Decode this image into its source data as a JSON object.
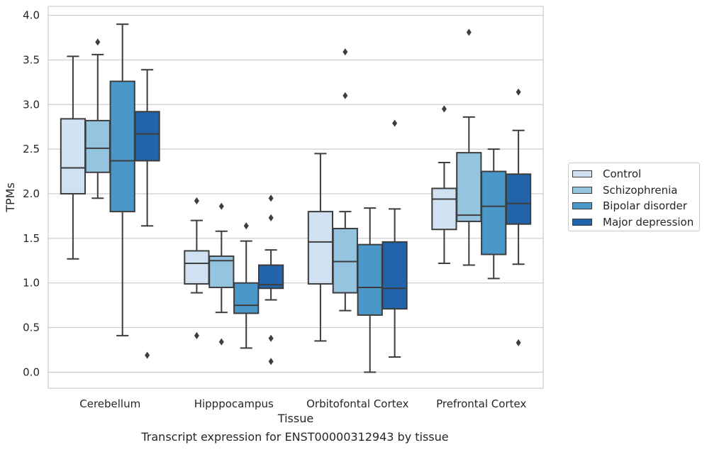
{
  "chart_data": {
    "type": "box",
    "xlabel": "Tissue",
    "ylabel": "TPMs",
    "caption": "Transcript expression for ENST00000312943 by tissue",
    "ylim": [
      -0.18,
      4.1
    ],
    "yticks": [
      0.0,
      0.5,
      1.0,
      1.5,
      2.0,
      2.5,
      3.0,
      3.5,
      4.0
    ],
    "ytick_labels": [
      "0.0",
      "0.5",
      "1.0",
      "1.5",
      "2.0",
      "2.5",
      "3.0",
      "3.5",
      "4.0"
    ],
    "grid": "horizontal",
    "legend_position": "right",
    "categories": [
      "Cerebellum",
      "Hipppocampus",
      "Orbitofontal Cortex",
      "Prefrontal Cortex"
    ],
    "series": [
      {
        "name": "Control",
        "color": "#d0e1f2",
        "boxes": [
          {
            "whislo": 1.27,
            "q1": 2.0,
            "median": 2.29,
            "q3": 2.84,
            "whishi": 3.54,
            "fliers": []
          },
          {
            "whislo": 0.89,
            "q1": 0.99,
            "median": 1.22,
            "q3": 1.36,
            "whishi": 1.7,
            "fliers": [
              1.92,
              0.41
            ]
          },
          {
            "whislo": 0.35,
            "q1": 0.99,
            "median": 1.46,
            "q3": 1.8,
            "whishi": 2.45,
            "fliers": []
          },
          {
            "whislo": 1.22,
            "q1": 1.6,
            "median": 1.94,
            "q3": 2.06,
            "whishi": 2.35,
            "fliers": [
              2.95
            ]
          }
        ]
      },
      {
        "name": "Schizophrenia",
        "color": "#94c4df",
        "boxes": [
          {
            "whislo": 1.95,
            "q1": 2.24,
            "median": 2.51,
            "q3": 2.82,
            "whishi": 3.56,
            "fliers": [
              3.7
            ]
          },
          {
            "whislo": 0.67,
            "q1": 0.95,
            "median": 1.25,
            "q3": 1.3,
            "whishi": 1.58,
            "fliers": [
              1.86,
              0.34
            ]
          },
          {
            "whislo": 0.69,
            "q1": 0.89,
            "median": 1.24,
            "q3": 1.61,
            "whishi": 1.8,
            "fliers": [
              3.59,
              3.1
            ]
          },
          {
            "whislo": 1.2,
            "q1": 1.69,
            "median": 1.76,
            "q3": 2.46,
            "whishi": 2.86,
            "fliers": [
              3.81
            ]
          }
        ]
      },
      {
        "name": "Bipolar disorder",
        "color": "#4a98c9",
        "boxes": [
          {
            "whislo": 0.41,
            "q1": 1.8,
            "median": 2.37,
            "q3": 3.26,
            "whishi": 3.9,
            "fliers": []
          },
          {
            "whislo": 0.27,
            "q1": 0.66,
            "median": 0.75,
            "q3": 1.0,
            "whishi": 1.47,
            "fliers": [
              1.64
            ]
          },
          {
            "whislo": 0.0,
            "q1": 0.64,
            "median": 0.95,
            "q3": 1.43,
            "whishi": 1.84,
            "fliers": []
          },
          {
            "whislo": 1.05,
            "q1": 1.32,
            "median": 1.86,
            "q3": 2.25,
            "whishi": 2.5,
            "fliers": []
          }
        ]
      },
      {
        "name": "Major depression",
        "color": "#2164ab",
        "boxes": [
          {
            "whislo": 1.64,
            "q1": 2.37,
            "median": 2.67,
            "q3": 2.92,
            "whishi": 3.39,
            "fliers": [
              0.19
            ]
          },
          {
            "whislo": 0.81,
            "q1": 0.94,
            "median": 0.98,
            "q3": 1.2,
            "whishi": 1.37,
            "fliers": [
              1.95,
              1.73,
              0.38,
              0.12
            ]
          },
          {
            "whislo": 0.17,
            "q1": 0.71,
            "median": 0.94,
            "q3": 1.46,
            "whishi": 1.83,
            "fliers": [
              2.79
            ]
          },
          {
            "whislo": 1.21,
            "q1": 1.66,
            "median": 1.89,
            "q3": 2.22,
            "whishi": 2.71,
            "fliers": [
              3.14,
              0.33
            ]
          }
        ]
      }
    ]
  }
}
